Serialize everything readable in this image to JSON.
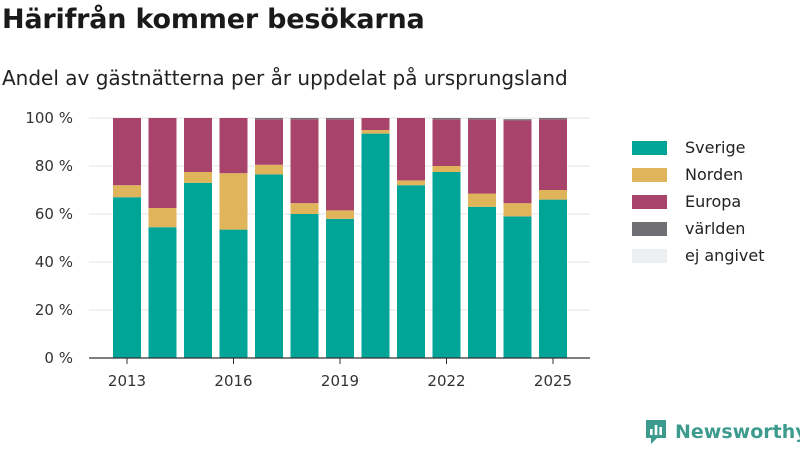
{
  "title": "Härifrån kommer besökarna",
  "subtitle": "Andel av gästnätterna per år uppdelat på ursprungsland",
  "brand": {
    "name": "Newsworthy",
    "icon": "newsworthy-logo-icon",
    "color": "#3d9b8e"
  },
  "chart_data": {
    "type": "bar",
    "stacked": true,
    "categories": [
      "2013",
      "2014",
      "2015",
      "2016",
      "2017",
      "2018",
      "2019",
      "2020",
      "2021",
      "2022",
      "2023",
      "2024",
      "2025"
    ],
    "x_tick_labels": [
      "2013",
      "2016",
      "2019",
      "2022",
      "2025"
    ],
    "y_tick_labels": [
      "0 %",
      "20 %",
      "40 %",
      "60 %",
      "80 %",
      "100 %"
    ],
    "ylim": [
      0,
      100
    ],
    "grid": true,
    "legend_position": "right",
    "series": [
      {
        "name": "Sverige",
        "color": "#00a598",
        "values": [
          67,
          54.5,
          73,
          53.5,
          76.5,
          60,
          58,
          93.5,
          72,
          77.5,
          63,
          59,
          66
        ]
      },
      {
        "name": "Norden",
        "color": "#e0b45a",
        "values": [
          5,
          8,
          4.5,
          23.5,
          4,
          4.5,
          3.5,
          1.5,
          2,
          2.5,
          5.5,
          5.5,
          4
        ]
      },
      {
        "name": "Europa",
        "color": "#a8436b",
        "values": [
          28,
          37.5,
          22.5,
          23,
          19,
          35,
          38,
          5,
          26,
          19.5,
          31,
          34.5,
          29.5
        ]
      },
      {
        "name": "världen",
        "color": "#6f6f74",
        "values": [
          0,
          0,
          0,
          0,
          0.5,
          0.5,
          0.5,
          0,
          0,
          0.5,
          0.5,
          0.5,
          0.5
        ]
      },
      {
        "name": "ej angivet",
        "color": "#eeeff2",
        "values": [
          0,
          0,
          0,
          0,
          0,
          0,
          0,
          0,
          0,
          0,
          0,
          0,
          0
        ]
      }
    ]
  }
}
